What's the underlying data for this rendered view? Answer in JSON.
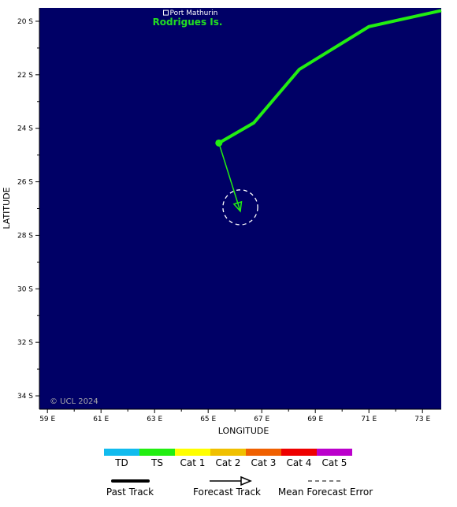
{
  "map": {
    "ocean_color": "#000066",
    "track_color": "#22ee11",
    "forecast_color": "#22ee11",
    "place": {
      "name": "Port Mathurin",
      "lon": 63.42,
      "lat": -19.68
    },
    "island_label": "Rodrigues Is.",
    "copyright": "© UCL 2024",
    "xlabel": "LONGITUDE",
    "ylabel": "LATITUDE",
    "x_ticks": [
      "59 E",
      "61 E",
      "63 E",
      "65 E",
      "67 E",
      "69 E",
      "71 E",
      "73 E"
    ],
    "x_tick_values": [
      59,
      61,
      63,
      65,
      67,
      69,
      71,
      73
    ],
    "y_ticks": [
      "20 S",
      "22 S",
      "24 S",
      "26 S",
      "28 S",
      "30 S",
      "32 S",
      "34 S"
    ],
    "y_tick_values": [
      -20,
      -22,
      -24,
      -26,
      -28,
      -30,
      -32,
      -34
    ],
    "lon_range": [
      58.7,
      73.7
    ],
    "lat_range": [
      -19.5,
      -34.5
    ],
    "past_track": [
      {
        "lon": 73.7,
        "lat": -19.6
      },
      {
        "lon": 71.0,
        "lat": -20.2
      },
      {
        "lon": 68.4,
        "lat": -21.8
      },
      {
        "lon": 66.7,
        "lat": -23.8
      },
      {
        "lon": 65.4,
        "lat": -24.55
      }
    ],
    "current_position": {
      "lon": 65.4,
      "lat": -24.55
    },
    "forecast_end": {
      "lon": 66.2,
      "lat": -27.1
    },
    "forecast_error_radius_deg": 0.65
  },
  "legend": {
    "categories": [
      {
        "label": "TD",
        "color": "#11bbee"
      },
      {
        "label": "TS",
        "color": "#22ee11"
      },
      {
        "label": "Cat 1",
        "color": "#ffff00"
      },
      {
        "label": "Cat 2",
        "color": "#f0c000"
      },
      {
        "label": "Cat 3",
        "color": "#f06000"
      },
      {
        "label": "Cat 4",
        "color": "#ee0000"
      },
      {
        "label": "Cat 5",
        "color": "#bb00cc"
      }
    ],
    "past_track_label": "Past Track",
    "forecast_track_label": "Forecast Track",
    "error_label": "Mean Forecast Error"
  }
}
